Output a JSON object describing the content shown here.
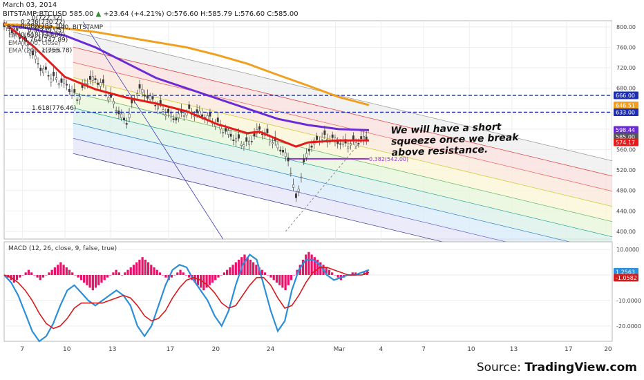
{
  "header": {
    "date": "March 03, 2014",
    "symbol": "BITSTAMP:BTCUSD",
    "last": "585.00",
    "change": "+23.64 (+4.21%)",
    "open": "576.60",
    "high": "585.79",
    "low": "576.60",
    "close": "585.00"
  },
  "chart_title": "Bitcoin / Dollar, 240, BITSTAMP",
  "legend": [
    "EMA (50, close)",
    "EMA (100, close)",
    "EMA (200, close)"
  ],
  "annotation": "We will have a short squeeze once we break above resistance.",
  "source": {
    "prefix": "Source: ",
    "brand": "TradingView.com"
  },
  "colors": {
    "ema50": "#e41b1b",
    "ema100": "#6a2bd6",
    "ema200": "#f0a020",
    "resistance": "#1d2fb0",
    "candles": "#3a3a3a",
    "macd_line": "#2a8fd8",
    "signal_line": "#d21c1c",
    "histogram": "#e8126b"
  },
  "chart_data": [
    {
      "type": "line",
      "name": "price",
      "y_ticks": [
        800,
        760,
        720,
        680,
        640,
        600,
        560,
        520,
        480,
        440,
        400
      ],
      "y_tick_labels": [
        "800.00",
        "760.00",
        "720.00",
        "680.00",
        "640.00",
        "600.00",
        "560.00",
        "520.00",
        "480.00",
        "440.00",
        "400.00"
      ],
      "ylim": [
        385,
        812
      ],
      "x_tick_labels": [
        "7",
        "10",
        "13",
        "17",
        "20",
        "24",
        "Mar",
        "4",
        "7",
        "10",
        "13",
        "17",
        "20"
      ],
      "x_tick_pos": [
        0.03,
        0.1,
        0.175,
        0.27,
        0.345,
        0.435,
        0.545,
        0.62,
        0.69,
        0.765,
        0.835,
        0.925,
        0.99
      ],
      "resistance_levels": [
        666.0,
        633.0
      ],
      "support_level": 542.0,
      "fib_levels": [
        {
          "label": "0(722.32)",
          "value": 722.32
        },
        {
          "label": "0.236(730.22)",
          "value": 730.22
        },
        {
          "label": "0.382(735.10)",
          "value": 735.1
        },
        {
          "label": "0.5(739.05)",
          "value": 739.05
        },
        {
          "label": "0.618(743.00)",
          "value": 743.0
        },
        {
          "label": "0.764(747.89)",
          "value": 747.89
        },
        {
          "label": "1(755.78)",
          "value": 755.78
        },
        {
          "label": "1.618(776.46)",
          "value": 776.46
        }
      ],
      "fib_support_label": "0.382(542.00)",
      "price_labels": [
        {
          "value": 666.0,
          "text": "666.00",
          "color": "#1d2fb0"
        },
        {
          "value": 646.51,
          "text": "646.51",
          "color": "#f0a020"
        },
        {
          "value": 633.0,
          "text": "633.00",
          "color": "#1d2fb0"
        },
        {
          "value": 598.44,
          "text": "598.44",
          "color": "#6a2bd6"
        },
        {
          "value": 585.0,
          "text": "585.00",
          "color": "#555555"
        },
        {
          "value": 574.17,
          "text": "574.17",
          "color": "#e41b1b"
        }
      ],
      "series": [
        {
          "name": "EMA (50, close)",
          "x": [
            0,
            0.05,
            0.1,
            0.15,
            0.2,
            0.25,
            0.3,
            0.35,
            0.4,
            0.42,
            0.45,
            0.48,
            0.5,
            0.55,
            0.6
          ],
          "values": [
            808,
            760,
            702,
            678,
            662,
            650,
            635,
            610,
            592,
            595,
            580,
            566,
            574,
            578,
            578
          ]
        },
        {
          "name": "EMA (100, close)",
          "x": [
            0,
            0.05,
            0.1,
            0.15,
            0.2,
            0.25,
            0.3,
            0.35,
            0.4,
            0.45,
            0.5,
            0.55,
            0.6
          ],
          "values": [
            805,
            795,
            783,
            760,
            730,
            700,
            680,
            660,
            640,
            620,
            608,
            600,
            598
          ]
        },
        {
          "name": "EMA (200, close)",
          "x": [
            0,
            0.05,
            0.1,
            0.15,
            0.2,
            0.25,
            0.3,
            0.35,
            0.4,
            0.45,
            0.5,
            0.55,
            0.6
          ],
          "values": [
            805,
            803,
            797,
            790,
            780,
            770,
            760,
            745,
            728,
            706,
            685,
            663,
            647
          ]
        },
        {
          "name": "price",
          "x": [
            0,
            0.02,
            0.04,
            0.06,
            0.08,
            0.1,
            0.12,
            0.14,
            0.16,
            0.18,
            0.2,
            0.22,
            0.24,
            0.26,
            0.28,
            0.3,
            0.32,
            0.34,
            0.36,
            0.38,
            0.4,
            0.42,
            0.44,
            0.46,
            0.47,
            0.48,
            0.49,
            0.5,
            0.52,
            0.54,
            0.56,
            0.58,
            0.6
          ],
          "values": [
            800,
            790,
            760,
            720,
            700,
            690,
            660,
            700,
            690,
            650,
            610,
            680,
            660,
            640,
            620,
            635,
            630,
            620,
            600,
            580,
            570,
            600,
            580,
            555,
            530,
            460,
            520,
            560,
            585,
            580,
            570,
            575,
            585
          ]
        }
      ]
    },
    {
      "type": "bar",
      "name": "MACD (12, 26, close, 9, false, true)",
      "y_ticks": [
        10,
        0,
        -10,
        -20
      ],
      "y_tick_labels": [
        "10.0000",
        "0.0000",
        "-10.0000",
        "-20.0000"
      ],
      "ylim": [
        -26,
        13
      ],
      "price_labels": [
        {
          "value": 1.2563,
          "text": "1.2563",
          "color": "#2a8fd8"
        },
        {
          "value": -1.0582,
          "text": "-1.0582",
          "color": "#d21c1c"
        }
      ],
      "histogram": [
        0,
        -1,
        -2,
        -3,
        -2,
        -1,
        0,
        1,
        2,
        1,
        0,
        -1,
        -2,
        -1,
        0,
        1,
        2,
        3,
        4,
        5,
        4,
        3,
        2,
        1,
        0,
        -1,
        -2,
        -3,
        -4,
        -5,
        -6,
        -5,
        -4,
        -3,
        -2,
        -1,
        0,
        1,
        2,
        1,
        0,
        1,
        2,
        3,
        4,
        5,
        6,
        7,
        6,
        5,
        4,
        3,
        2,
        1,
        0,
        -1,
        -2,
        -1,
        0,
        1,
        2,
        1,
        0,
        -1,
        -2,
        -3,
        -4,
        -5,
        -6,
        -5,
        -4,
        -3,
        -2,
        -1,
        0,
        1,
        2,
        3,
        4,
        5,
        6,
        7,
        8,
        7,
        6,
        5,
        4,
        3,
        2,
        1,
        0,
        -1,
        -2,
        -3,
        -4,
        -5,
        -6,
        -4,
        -2,
        0,
        2,
        4,
        6,
        8,
        9,
        8,
        7,
        6,
        5,
        4,
        3,
        2,
        1,
        0,
        -1,
        -2,
        -1,
        0,
        0,
        1,
        1,
        0,
        0,
        1,
        2
      ],
      "macd_line": [
        0,
        -3,
        -8,
        -15,
        -22,
        -26,
        -24,
        -19,
        -12,
        -6,
        -4,
        -7,
        -10,
        -12,
        -10,
        -8,
        -6,
        -8,
        -12,
        -20,
        -24,
        -20,
        -12,
        -4,
        2,
        4,
        3,
        -2,
        -6,
        -10,
        -16,
        -20,
        -14,
        -4,
        4,
        8,
        6,
        -4,
        -14,
        -22,
        -18,
        -6,
        2,
        6,
        6,
        4,
        0,
        -2,
        -1,
        0,
        0,
        1,
        2
      ],
      "signal_line": [
        0,
        -1,
        -3,
        -6,
        -10,
        -15,
        -19,
        -21,
        -20,
        -17,
        -13,
        -11,
        -11,
        -11,
        -11,
        -10,
        -9,
        -8,
        -9,
        -12,
        -16,
        -18,
        -17,
        -14,
        -9,
        -5,
        -2,
        -1,
        -2,
        -4,
        -7,
        -11,
        -13,
        -12,
        -8,
        -4,
        -1,
        -1,
        -4,
        -9,
        -13,
        -12,
        -8,
        -3,
        1,
        3,
        3,
        2,
        1,
        0,
        0,
        0,
        1
      ]
    }
  ]
}
